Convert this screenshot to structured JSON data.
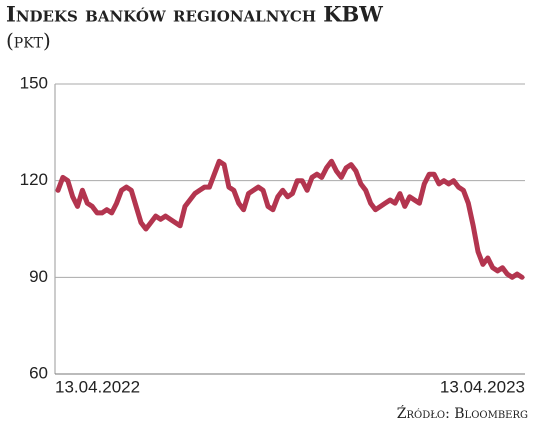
{
  "chart_data": {
    "type": "line",
    "title": "Indeks banków regionalnych KBW",
    "subtitle": "(pkt)",
    "source": "Źródło: Bloomberg",
    "categories": [
      "13.04.2022",
      null,
      null,
      null,
      null,
      null,
      null,
      null,
      null,
      null,
      null,
      null,
      null,
      null,
      null,
      null,
      null,
      null,
      null,
      null,
      null,
      null,
      null,
      null,
      null,
      null,
      null,
      null,
      null,
      null,
      null,
      null,
      null,
      null,
      null,
      null,
      null,
      null,
      null,
      null,
      null,
      null,
      null,
      null,
      null,
      null,
      null,
      null,
      null,
      null,
      null,
      null,
      null,
      null,
      null,
      null,
      null,
      null,
      null,
      null,
      null,
      null,
      null,
      null,
      null,
      null,
      null,
      null,
      null,
      null,
      null,
      null,
      null,
      null,
      null,
      null,
      null,
      null,
      null,
      null,
      null,
      null,
      null,
      null,
      null,
      null,
      null,
      null,
      null,
      null,
      null,
      null,
      null,
      null,
      null,
      "13.04.2023"
    ],
    "series": [
      {
        "name": "KBW",
        "color": "#b3354f",
        "values": [
          117,
          121,
          120,
          115,
          112,
          117,
          113,
          112,
          110,
          110,
          111,
          110,
          113,
          117,
          118,
          117,
          112,
          107,
          105,
          107,
          109,
          108,
          109,
          108,
          107,
          106,
          112,
          114,
          116,
          117,
          118,
          118,
          122,
          126,
          125,
          118,
          117,
          113,
          111,
          116,
          117,
          118,
          117,
          112,
          111,
          115,
          117,
          115,
          116,
          120,
          120,
          117,
          121,
          122,
          121,
          124,
          126,
          123,
          121,
          124,
          125,
          123,
          119,
          117,
          113,
          111,
          112,
          113,
          114,
          113,
          116,
          112,
          115,
          114,
          113,
          119,
          122,
          122,
          119,
          120,
          119,
          120,
          118,
          117,
          113,
          106,
          98,
          94,
          96,
          93,
          92,
          93,
          91,
          90,
          91,
          90
        ]
      }
    ],
    "ylim": [
      60,
      150
    ],
    "yticks": [
      60,
      90,
      120,
      150
    ],
    "grid": true
  }
}
